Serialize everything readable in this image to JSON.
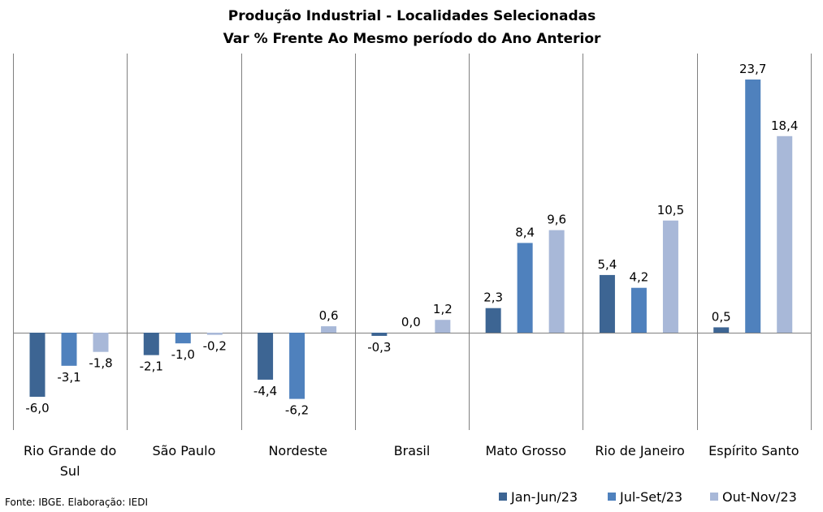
{
  "chart_data": {
    "type": "bar",
    "title": "Produção Industrial - Localidades Selecionadas",
    "subtitle": "Var % Frente Ao Mesmo período do Ano Anterior",
    "categories": [
      [
        "Rio Grande do",
        "Sul"
      ],
      [
        "São Paulo"
      ],
      [
        "Nordeste"
      ],
      [
        "Brasil"
      ],
      [
        "Mato Grosso"
      ],
      [
        "Rio de Janeiro"
      ],
      [
        "Espírito Santo"
      ]
    ],
    "series": [
      {
        "name": "Jan-Jun/23",
        "color": "#3d6593",
        "values": [
          -6.0,
          -2.1,
          -4.4,
          -0.3,
          2.3,
          5.4,
          0.5
        ],
        "labels": [
          "-6,0",
          "-2,1",
          "-4,4",
          "-0,3",
          "2,3",
          "5,4",
          "0,5"
        ]
      },
      {
        "name": "Jul-Set/23",
        "color": "#4f81bd",
        "values": [
          -3.1,
          -1.0,
          -6.2,
          0.0,
          8.4,
          4.2,
          23.7
        ],
        "labels": [
          "-3,1",
          "-1,0",
          "-6,2",
          "0,0",
          "8,4",
          "4,2",
          "23,7"
        ]
      },
      {
        "name": "Out-Nov/23",
        "color": "#a8b8d8",
        "values": [
          -1.8,
          -0.2,
          0.6,
          1.2,
          9.6,
          10.5,
          18.4
        ],
        "labels": [
          "-1,8",
          "-0,2",
          "0,6",
          "1,2",
          "9,6",
          "10,5",
          "18,4"
        ]
      }
    ],
    "ylim": [
      -8.5,
      26
    ],
    "legend_position": "bottom-right",
    "source": "Fonte: IBGE. Elaboração: IEDI"
  }
}
